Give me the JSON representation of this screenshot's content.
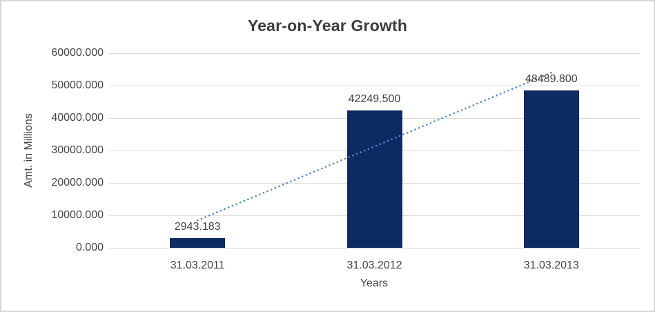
{
  "window": {
    "background": "#ffffff",
    "border_color": "#d6d6d6"
  },
  "chart_data": {
    "type": "bar",
    "title": "Year-on-Year Growth",
    "xlabel": "Years",
    "ylabel": "Amt. in Millions",
    "categories": [
      "31.03.2011",
      "31.03.2012",
      "31.03.2013"
    ],
    "values": [
      2943.183,
      42249.5,
      48489.8
    ],
    "value_labels": [
      "2943.183",
      "42249.500",
      "48489.800"
    ],
    "ylim": [
      0,
      60000
    ],
    "ytick_step": 10000,
    "ytick_labels": [
      "0.000",
      "10000.000",
      "20000.000",
      "30000.000",
      "40000.000",
      "50000.000",
      "60000.000"
    ],
    "grid": "horizontal",
    "legend": "none",
    "trendline": {
      "type": "linear",
      "style": "dotted",
      "color": "#4e8ac8"
    },
    "colors": {
      "bar": "#0d2a63",
      "gridline": "#d9d9d9",
      "axis_text": "#444444",
      "title_text": "#3d3d3d"
    }
  }
}
